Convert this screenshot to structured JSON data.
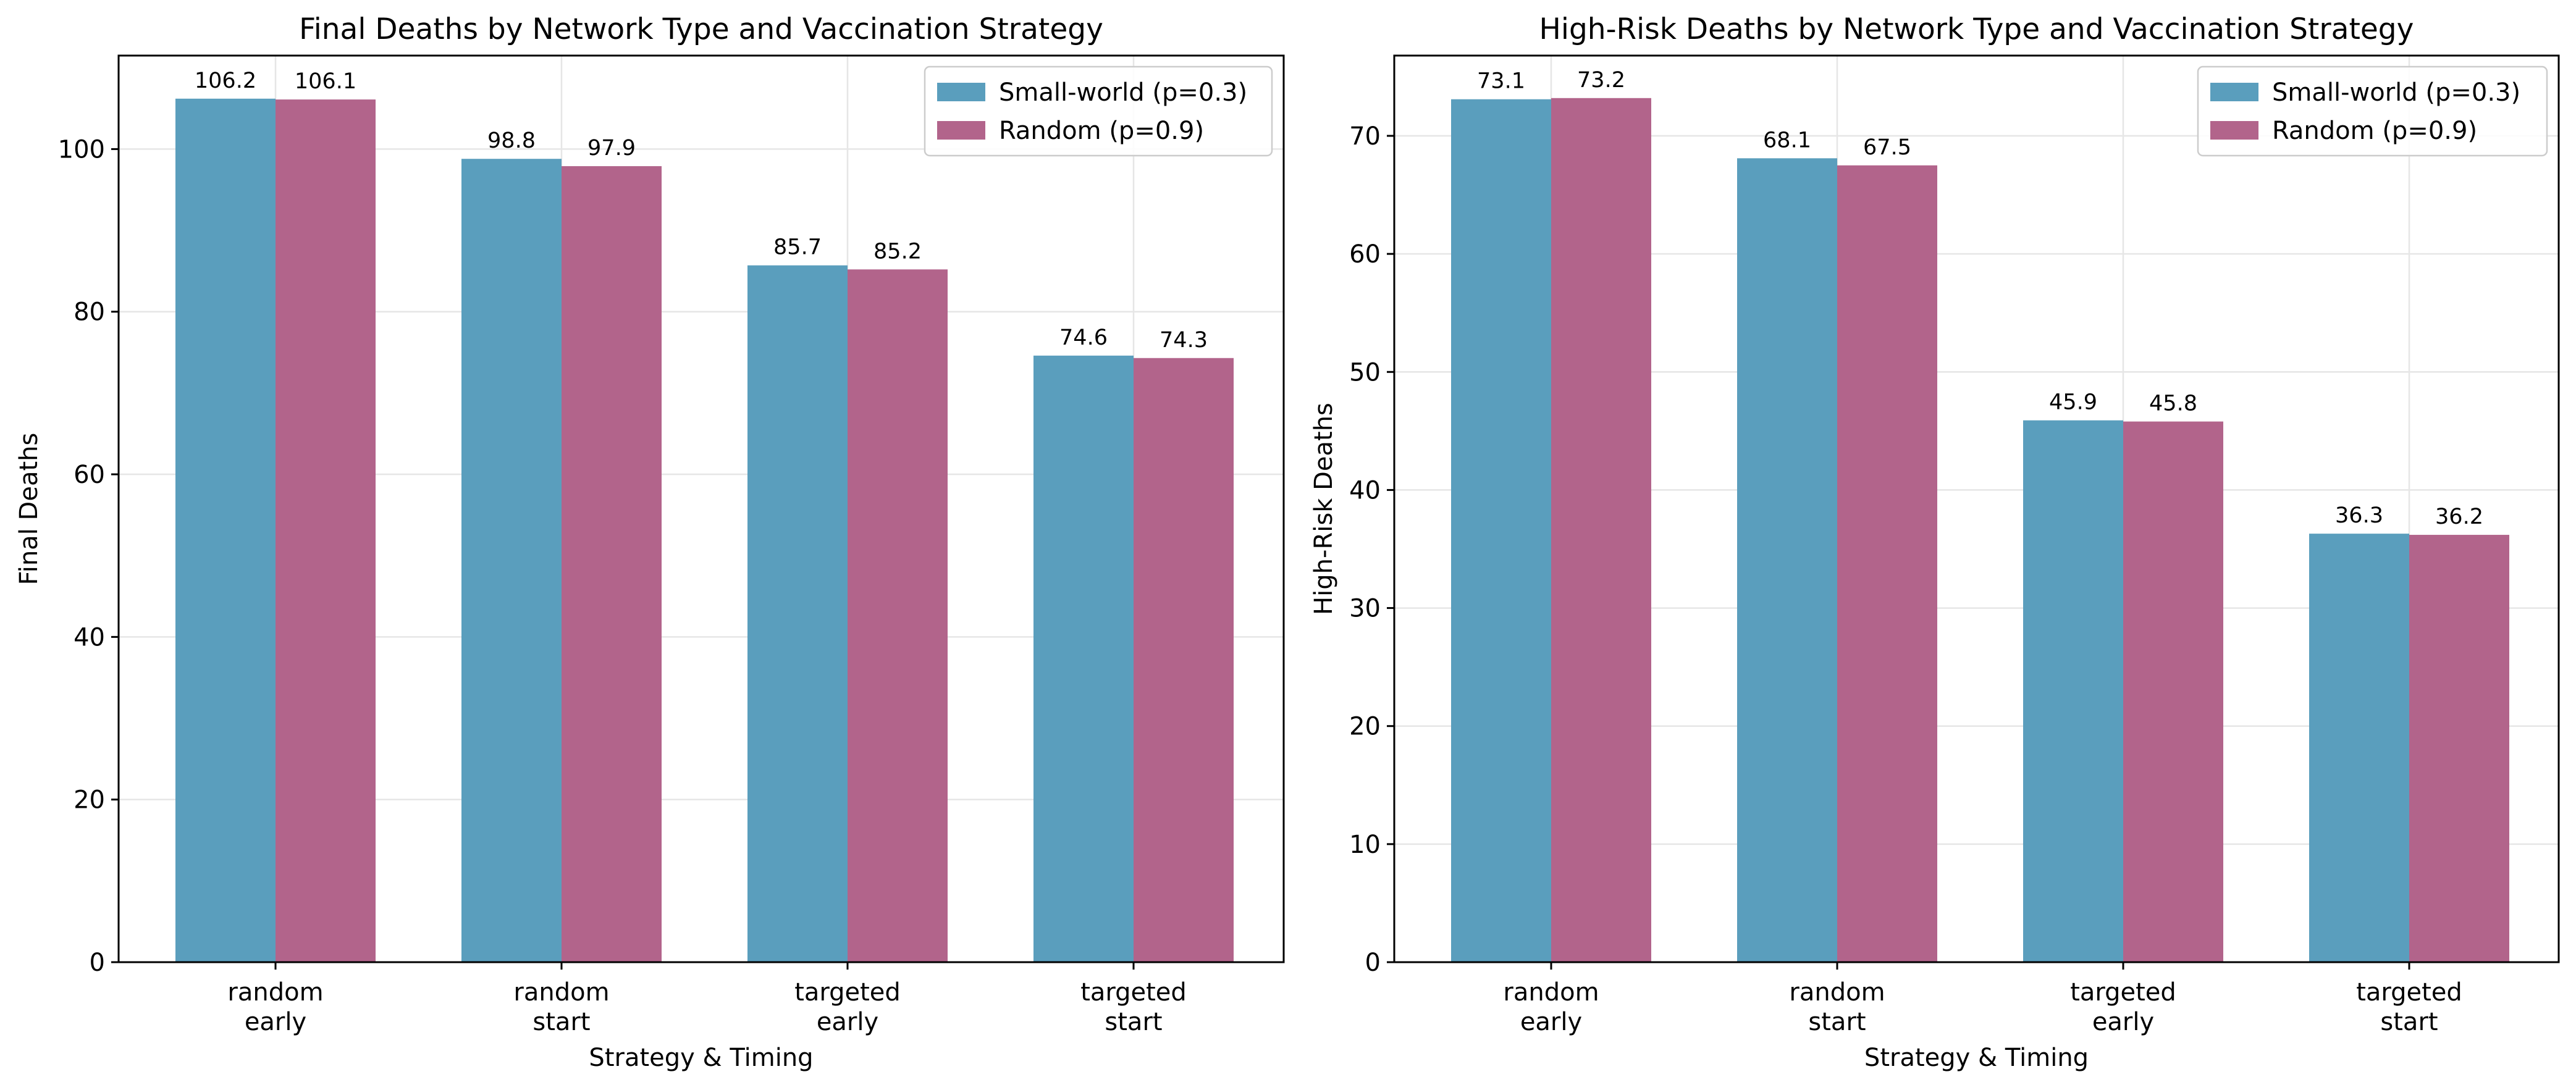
{
  "chart_data": [
    {
      "type": "bar",
      "title": "Final Deaths by Network Type and Vaccination Strategy",
      "xlabel": "Strategy & Timing",
      "ylabel": "Final Deaths",
      "categories": [
        [
          "random",
          "early"
        ],
        [
          "random",
          "start"
        ],
        [
          "targeted",
          "early"
        ],
        [
          "targeted",
          "start"
        ]
      ],
      "series": [
        {
          "name": "Small-world (p=0.3)",
          "color": "#5a9ebd",
          "values": [
            106.2,
            98.8,
            85.7,
            74.6
          ],
          "labels": [
            "106.2",
            "98.8",
            "85.7",
            "74.6"
          ]
        },
        {
          "name": "Random (p=0.9)",
          "color": "#b2648b",
          "values": [
            106.1,
            97.9,
            85.2,
            74.3
          ],
          "labels": [
            "106.1",
            "97.9",
            "85.2",
            "74.3"
          ]
        }
      ],
      "ylim": [
        0,
        111.5
      ],
      "yticks": [
        0,
        20,
        40,
        60,
        80,
        100
      ],
      "ytick_labels": [
        "0",
        "20",
        "40",
        "60",
        "80",
        "100"
      ],
      "grid": true,
      "legend": "upper right"
    },
    {
      "type": "bar",
      "title": "High-Risk Deaths by Network Type and Vaccination Strategy",
      "xlabel": "Strategy & Timing",
      "ylabel": "High-Risk Deaths",
      "categories": [
        [
          "random",
          "early"
        ],
        [
          "random",
          "start"
        ],
        [
          "targeted",
          "early"
        ],
        [
          "targeted",
          "start"
        ]
      ],
      "series": [
        {
          "name": "Small-world (p=0.3)",
          "color": "#5a9ebd",
          "values": [
            73.1,
            68.1,
            45.9,
            36.3
          ],
          "labels": [
            "73.1",
            "68.1",
            "45.9",
            "36.3"
          ]
        },
        {
          "name": "Random (p=0.9)",
          "color": "#b2648b",
          "values": [
            73.2,
            67.5,
            45.8,
            36.2
          ],
          "labels": [
            "73.2",
            "67.5",
            "45.8",
            "36.2"
          ]
        }
      ],
      "ylim": [
        0,
        76.8
      ],
      "yticks": [
        0,
        10,
        20,
        30,
        40,
        50,
        60,
        70
      ],
      "ytick_labels": [
        "0",
        "10",
        "20",
        "30",
        "40",
        "50",
        "60",
        "70"
      ],
      "grid": true,
      "legend": "upper right"
    }
  ]
}
